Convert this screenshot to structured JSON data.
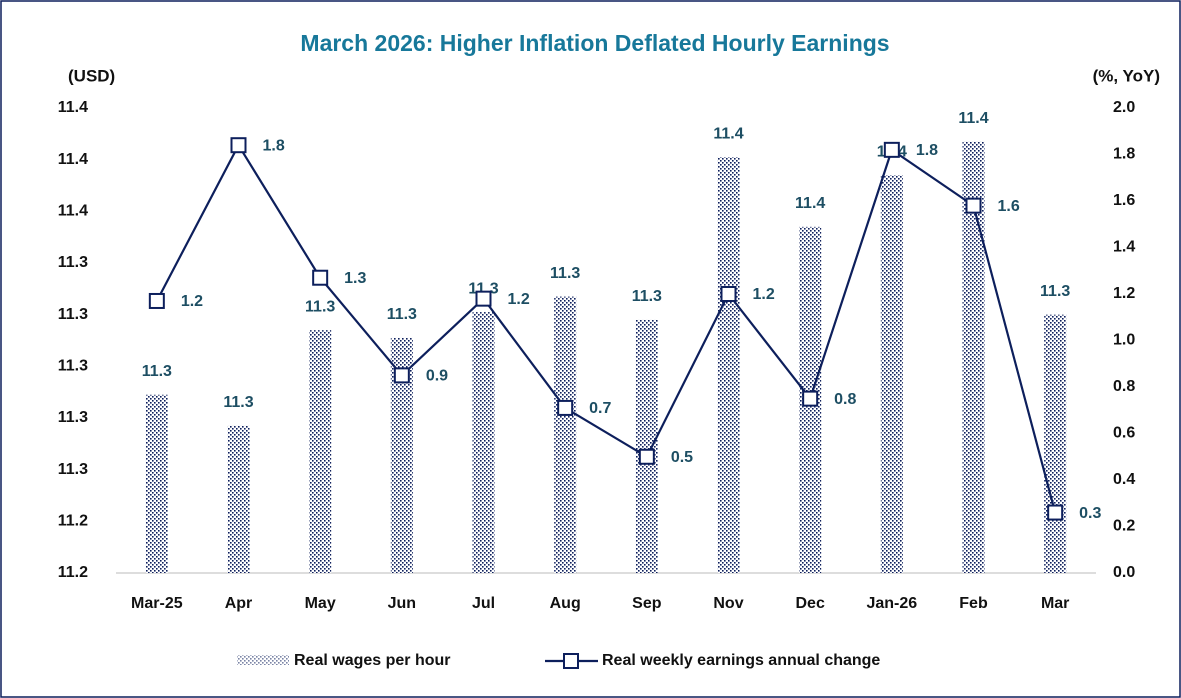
{
  "chart_data": {
    "type": "bar",
    "title": "March 2026: Higher Inflation Deflated Hourly Earnings",
    "y_label": "(USD)",
    "y2_label": "(%, YoY)",
    "categories": [
      "Mar-25",
      "Apr",
      "May",
      "Jun",
      "Jul",
      "Aug",
      "Sep",
      "Nov",
      "Dec",
      "Jan-26",
      "Feb",
      "Mar"
    ],
    "series": [
      {
        "name": "Real wages per hour",
        "type": "bar",
        "color": "#0d1f5c",
        "values": [
          11.289,
          11.277,
          11.314,
          11.311,
          11.321,
          11.327,
          11.318,
          11.381,
          11.354,
          11.374,
          11.387,
          11.32
        ],
        "value_labels": [
          "11.3",
          "11.3",
          "11.3",
          "11.3",
          "11.3",
          "11.3",
          "11.3",
          "11.4",
          "11.4",
          "11.4",
          "11.4",
          "11.3"
        ]
      },
      {
        "name": "Real weekly earnings annual change",
        "type": "line",
        "axis": "y2",
        "color": "#0d1f5c",
        "values": [
          1.17,
          1.84,
          1.27,
          0.85,
          1.18,
          0.71,
          0.5,
          1.2,
          0.75,
          1.82,
          1.58,
          0.26
        ],
        "value_labels": [
          "1.2",
          "1.8",
          "1.3",
          "0.9",
          "1.2",
          "0.7",
          "0.5",
          "1.2",
          "0.8",
          "1.8",
          "1.6",
          "0.3"
        ]
      }
    ],
    "ylim": [
      11.22,
      11.4
    ],
    "yticks": [
      {
        "value": 11.22,
        "label": "11.2"
      },
      {
        "value": 11.24,
        "label": "11.2"
      },
      {
        "value": 11.26,
        "label": "11.3"
      },
      {
        "value": 11.28,
        "label": "11.3"
      },
      {
        "value": 11.3,
        "label": "11.3"
      },
      {
        "value": 11.32,
        "label": "11.3"
      },
      {
        "value": 11.34,
        "label": "11.3"
      },
      {
        "value": 11.36,
        "label": "11.4"
      },
      {
        "value": 11.38,
        "label": "11.4"
      },
      {
        "value": 11.4,
        "label": "11.4"
      }
    ],
    "y2lim": [
      0,
      2
    ],
    "y2ticks": [
      {
        "value": 0,
        "label": "0.0"
      },
      0.2,
      0.4,
      0.6,
      0.8,
      {
        "value": 1,
        "label": "1.0"
      },
      1.2,
      1.4,
      1.6,
      1.8,
      {
        "value": 2,
        "label": "2.0"
      }
    ],
    "grid": false,
    "legend": "bottom"
  }
}
